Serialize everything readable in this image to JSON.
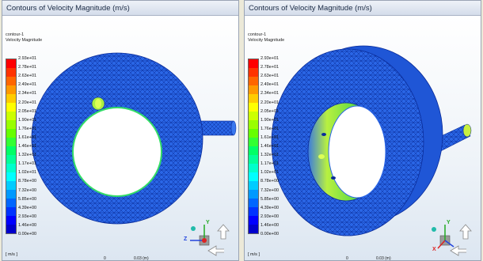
{
  "left_view": {
    "title": "Contours of Velocity Magnitude (m/s)",
    "contour_name": "contour-1",
    "contour_variable": "Velocity Magnitude",
    "scale_zero": "0",
    "scale_length": "0.03 (m)",
    "units": "[ m/s ]"
  },
  "right_view": {
    "title": "Contours of Velocity Magnitude (m/s)",
    "contour_name": "contour-1",
    "contour_variable": "Velocity Magnitude",
    "scale_zero": "0",
    "scale_length": "0.03 (m)",
    "units": "[ m/s ]"
  },
  "legend_ticks": [
    "2.93e+01",
    "2.78e+01",
    "2.63e+01",
    "2.49e+01",
    "2.34e+01",
    "2.20e+01",
    "2.05e+01",
    "1.90e+01",
    "1.76e+01",
    "1.61e+01",
    "1.46e+01",
    "1.32e+01",
    "1.17e+01",
    "1.02e+01",
    "8.78e+00",
    "7.32e+00",
    "5.85e+00",
    "4.39e+00",
    "2.93e+00",
    "1.46e+00",
    "0.00e+00"
  ],
  "legend_colors": [
    "#ff0000",
    "#ff3300",
    "#ff6600",
    "#ff9900",
    "#ffcc00",
    "#ffff00",
    "#ccff00",
    "#99ff00",
    "#66ff00",
    "#33ff33",
    "#00ff66",
    "#00ff99",
    "#00ffcc",
    "#00ffff",
    "#00ccff",
    "#0099ff",
    "#0066ff",
    "#0033ff",
    "#0000ff",
    "#0000cc"
  ],
  "triad_labels": {
    "x": "X",
    "y": "Y",
    "z": "Z"
  },
  "mesh_color": "#2060e0"
}
